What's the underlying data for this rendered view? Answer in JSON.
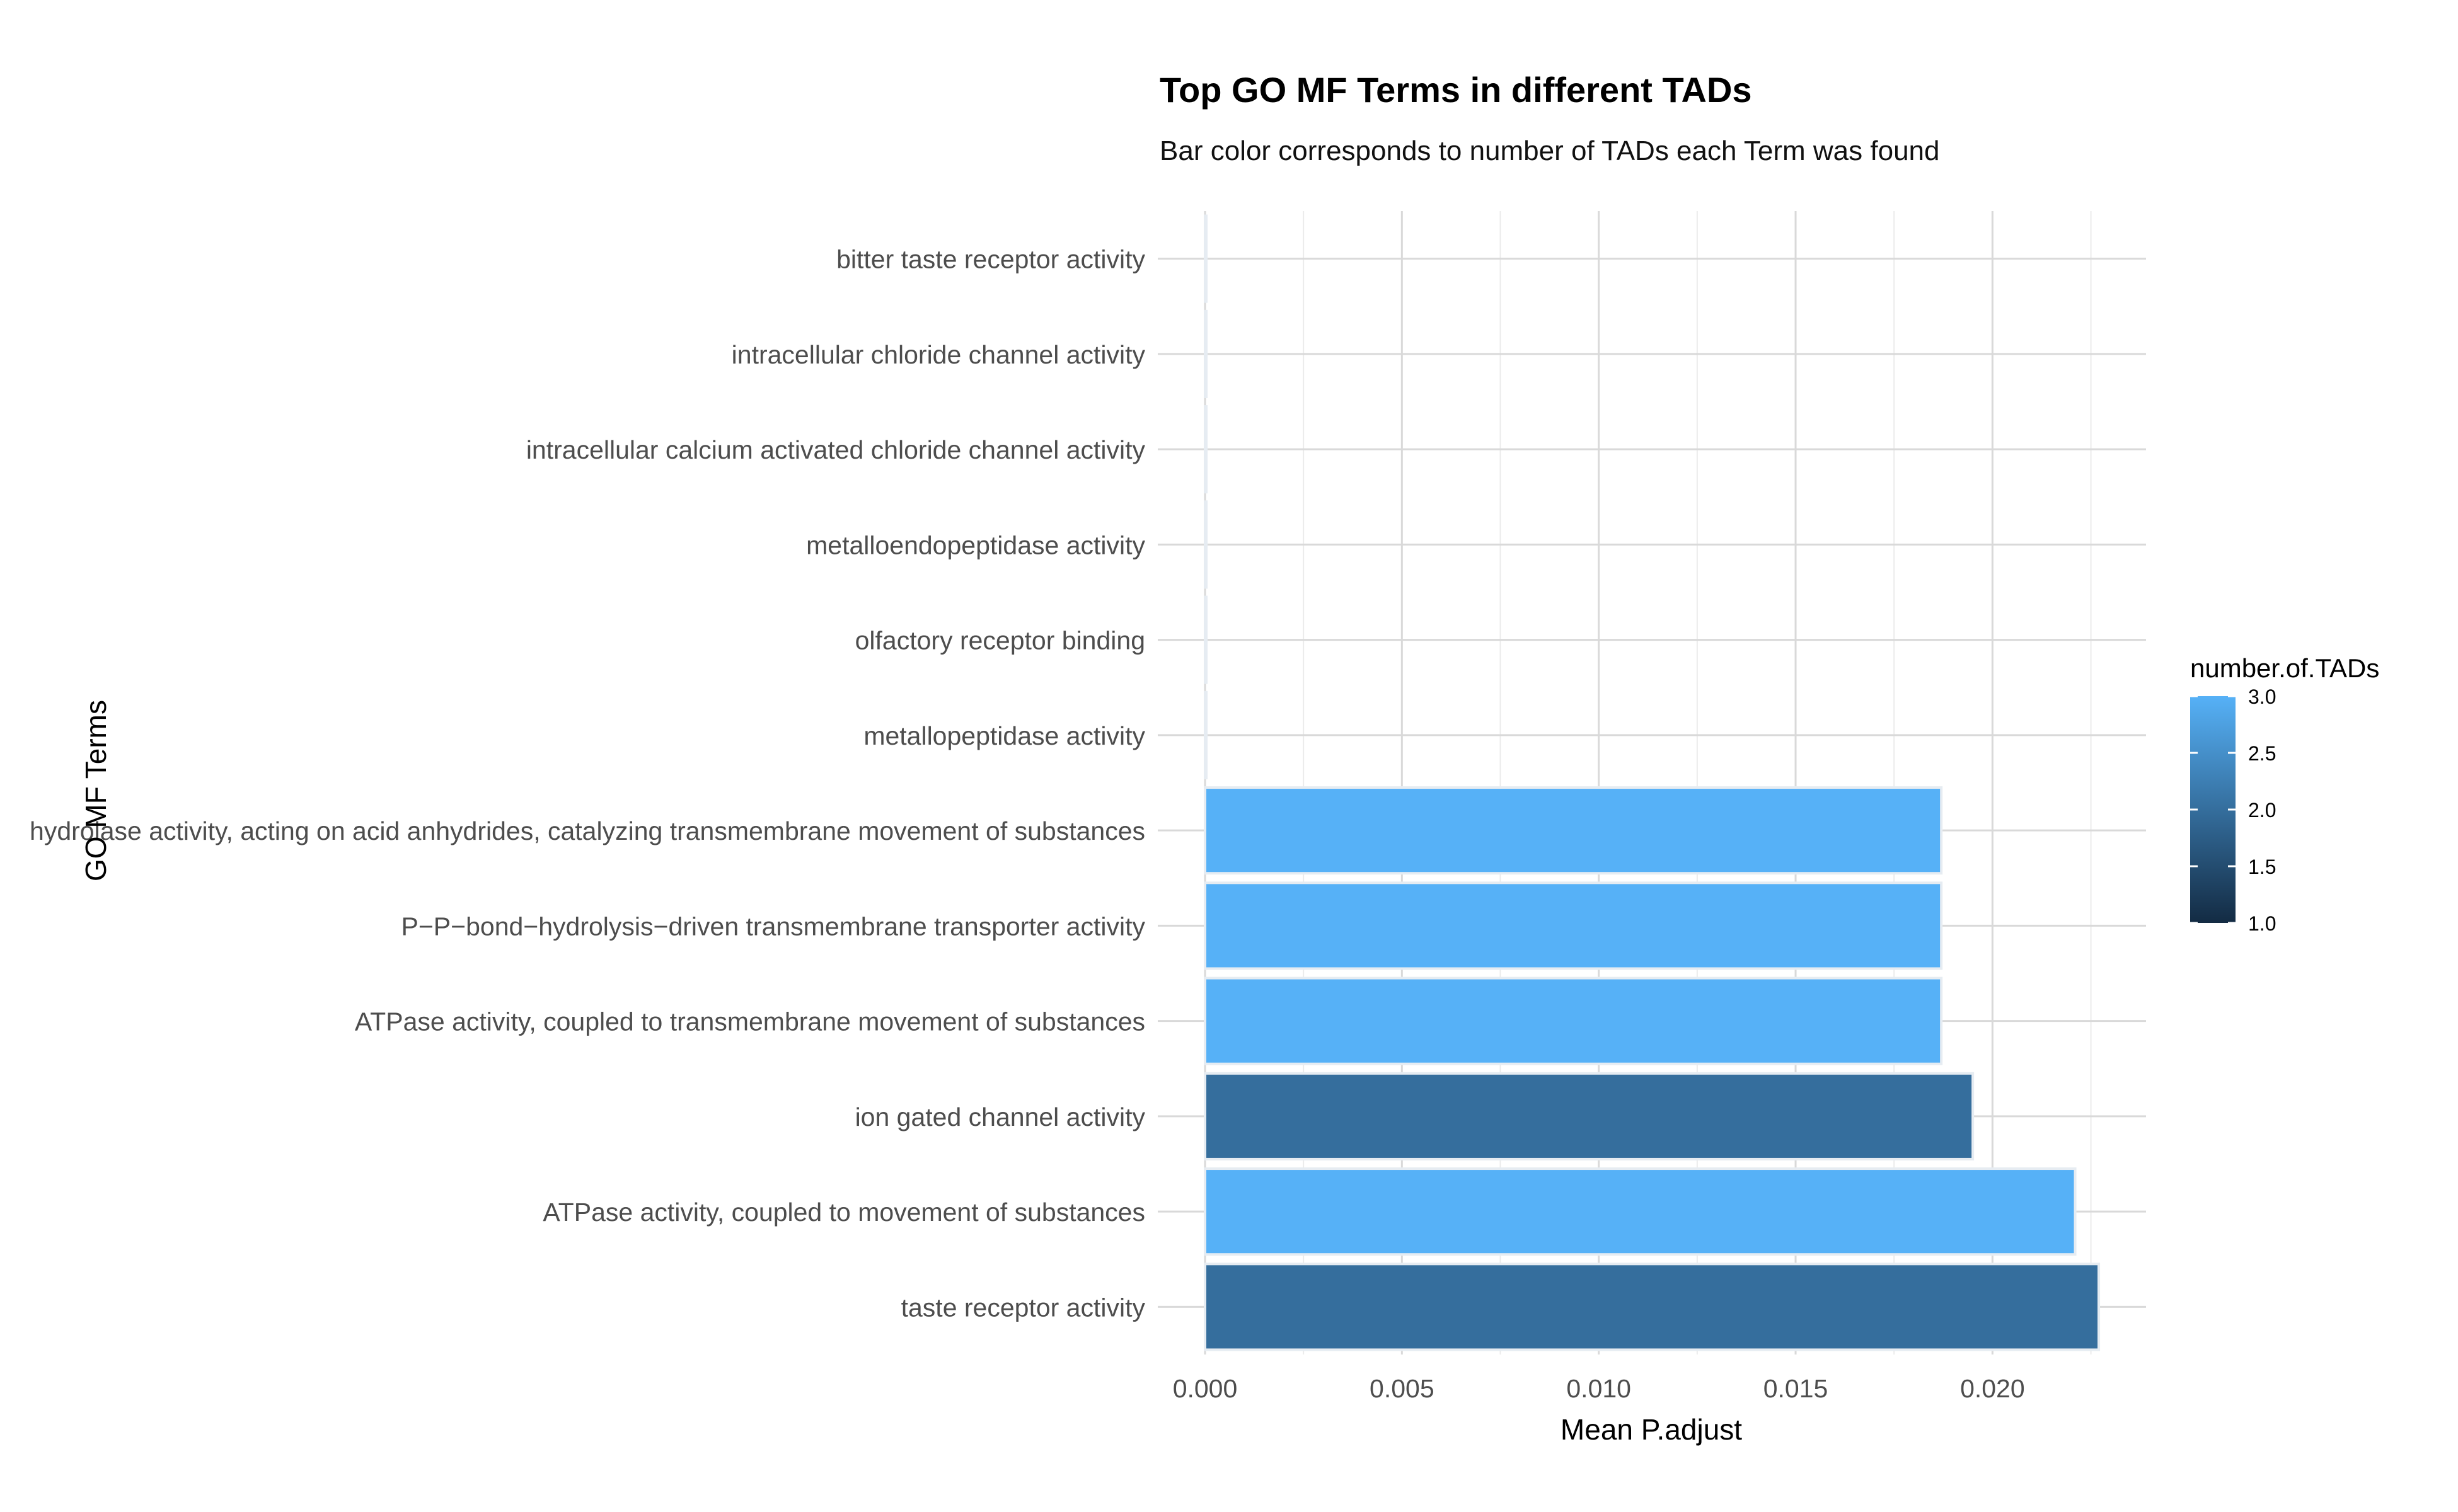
{
  "chart_data": {
    "type": "bar",
    "orientation": "horizontal",
    "title": "Top GO MF Terms in different TADs",
    "subtitle": "Bar color corresponds to number of TADs each Term was found",
    "xlabel": "Mean P.adjust",
    "ylabel": "GO MF Terms",
    "xlim": [
      0,
      0.0239
    ],
    "xticks": [
      "0.000",
      "0.005",
      "0.010",
      "0.015",
      "0.020"
    ],
    "xtick_values": [
      0,
      0.005,
      0.01,
      0.015,
      0.02
    ],
    "grid": true,
    "categories": [
      "taste receptor activity",
      "ATPase activity, coupled to movement of substances",
      "ion gated channel activity",
      "ATPase activity, coupled to transmembrane movement of substances",
      "P−P−bond−hydrolysis−driven transmembrane transporter activity",
      "hydrolase activity, acting on acid anhydrides, catalyzing transmembrane movement of substances",
      "metallopeptidase activity",
      "olfactory receptor binding",
      "metalloendopeptidase activity",
      "intracellular calcium activated chloride channel activity",
      "intracellular chloride channel activity",
      "bitter taste receptor activity"
    ],
    "values": [
      0.0227,
      0.0221,
      0.0195,
      0.0187,
      0.0187,
      0.0187,
      1e-05,
      1e-05,
      1e-05,
      1e-05,
      1e-05,
      1e-05
    ],
    "color_values": [
      2,
      3,
      2,
      3,
      3,
      3,
      3,
      3,
      3,
      3,
      3,
      3
    ],
    "legend": {
      "title": "number.of.TADs",
      "position": "right",
      "ticks": [
        "3.0",
        "2.5",
        "2.0",
        "1.5",
        "1.0"
      ],
      "tick_values": [
        3.0,
        2.5,
        2.0,
        1.5,
        1.0
      ],
      "range": [
        1.0,
        3.0
      ],
      "low_color": "#132B43",
      "high_color": "#56B1F7"
    }
  }
}
